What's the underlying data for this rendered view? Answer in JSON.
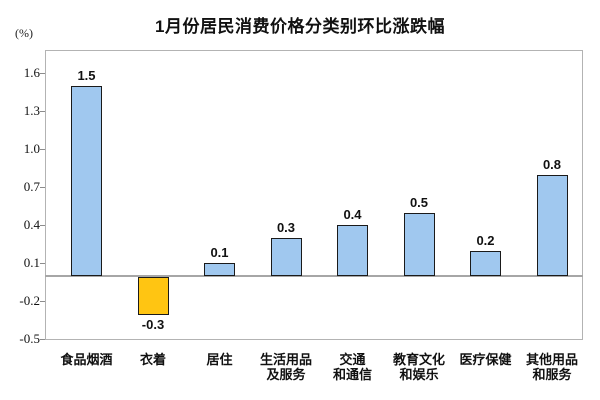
{
  "title": "1月份居民消费价格分类别环比涨跌幅",
  "axis_unit_label": "(%)",
  "chart_data": {
    "type": "bar",
    "title": "1月份居民消费价格分类别环比涨跌幅",
    "unit_label": "(%)",
    "categories": [
      "食品烟酒",
      "衣着",
      "居住",
      "生活用品\n及服务",
      "交通\n和通信",
      "教育文化\n和娱乐",
      "医疗保健",
      "其他用品\n和服务"
    ],
    "values": [
      1.5,
      -0.3,
      0.1,
      0.3,
      0.4,
      0.5,
      0.2,
      0.8
    ],
    "data_labels": [
      "1.5",
      "-0.3",
      "0.1",
      "0.3",
      "0.4",
      "0.5",
      "0.2",
      "0.8"
    ],
    "y_ticks": [
      1.6,
      1.3,
      1.0,
      0.7,
      0.4,
      0.1,
      -0.2,
      -0.5
    ],
    "ylim": [
      -0.5,
      1.78
    ],
    "grid": false,
    "legend": false,
    "colors": {
      "bar_fill_positive": "#a0c8ef",
      "bar_fill_negative": "#ffc512",
      "bar_border": "#1a1a1a",
      "plot_border": "#b3b3b3",
      "zero_line": "#a6a6a6",
      "text": "#111111"
    }
  }
}
